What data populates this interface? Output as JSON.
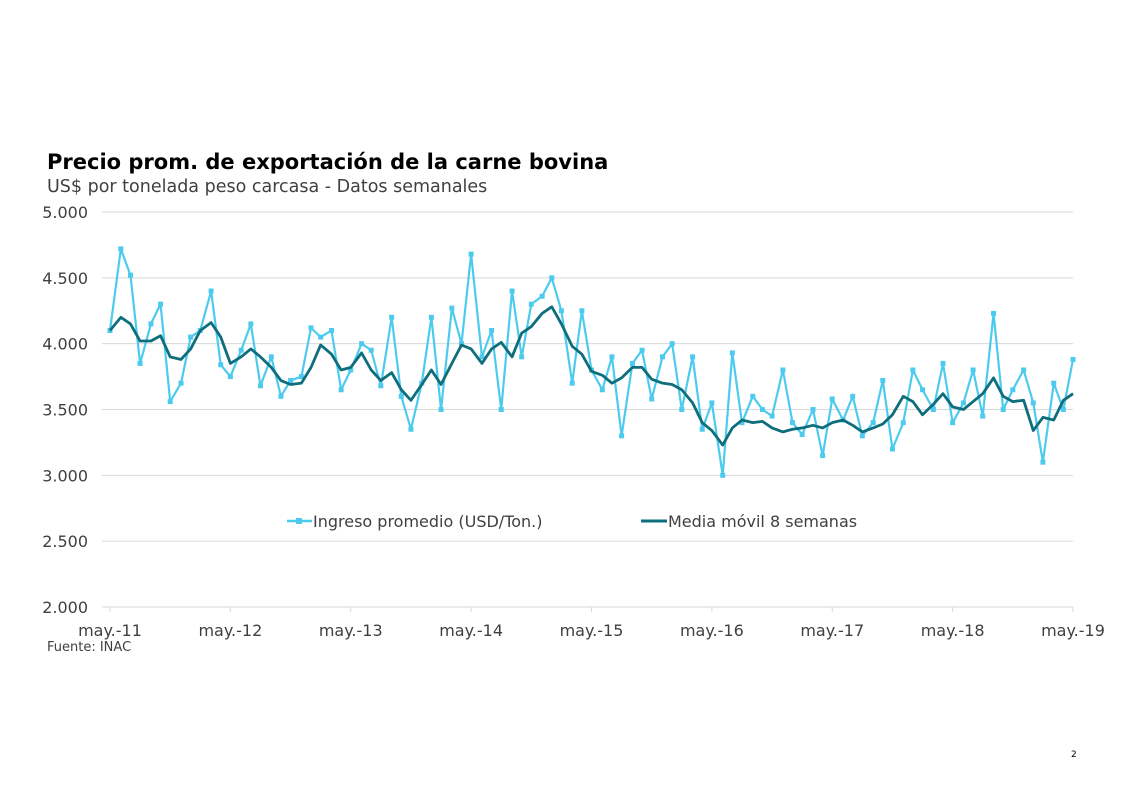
{
  "title": "Precio prom. de exportación de la carne bovina",
  "subtitle": "US$ por tonelada peso carcasa - Datos semanales",
  "source": "Fuente: INAC",
  "page_number": "2",
  "colors": {
    "raw": "#4DCBEF",
    "ma": "#0E6E7C",
    "grid": "#D9D9D9",
    "text": "#404040"
  },
  "chart_data": {
    "type": "line",
    "title": "Precio prom. de exportación de la carne bovina",
    "subtitle": "US$ por tonelada peso carcasa - Datos semanales",
    "xlabel": "",
    "ylabel": "",
    "ylim": [
      2000,
      5000
    ],
    "yticks": [
      2000,
      2500,
      3000,
      3500,
      4000,
      4500,
      5000
    ],
    "ytick_labels": [
      "2.000",
      "2.500",
      "3.000",
      "3.500",
      "4.000",
      "4.500",
      "5.000"
    ],
    "xlim": [
      2011.33,
      2019.33
    ],
    "xticks": [
      2011.33,
      2012.33,
      2013.33,
      2014.33,
      2015.33,
      2016.33,
      2017.33,
      2018.33,
      2019.33
    ],
    "xtick_labels": [
      "may.-11",
      "may.-12",
      "may.-13",
      "may.-14",
      "may.-15",
      "may.-16",
      "may.-17",
      "may.-18",
      "may.-19"
    ],
    "grid": true,
    "legend_position": "inside-lower-center",
    "series": [
      {
        "name": "Ingreso promedio (USD/Ton.)",
        "marker": "square",
        "x": [
          2011.33,
          2011.42,
          2011.5,
          2011.58,
          2011.67,
          2011.75,
          2011.83,
          2011.92,
          2012.0,
          2012.08,
          2012.17,
          2012.25,
          2012.33,
          2012.42,
          2012.5,
          2012.58,
          2012.67,
          2012.75,
          2012.83,
          2012.92,
          2013.0,
          2013.08,
          2013.17,
          2013.25,
          2013.33,
          2013.42,
          2013.5,
          2013.58,
          2013.67,
          2013.75,
          2013.83,
          2013.92,
          2014.0,
          2014.08,
          2014.17,
          2014.25,
          2014.33,
          2014.42,
          2014.5,
          2014.58,
          2014.67,
          2014.75,
          2014.83,
          2014.92,
          2015.0,
          2015.08,
          2015.17,
          2015.25,
          2015.33,
          2015.42,
          2015.5,
          2015.58,
          2015.67,
          2015.75,
          2015.83,
          2015.92,
          2016.0,
          2016.08,
          2016.17,
          2016.25,
          2016.33,
          2016.42,
          2016.5,
          2016.58,
          2016.67,
          2016.75,
          2016.83,
          2016.92,
          2017.0,
          2017.08,
          2017.17,
          2017.25,
          2017.33,
          2017.42,
          2017.5,
          2017.58,
          2017.67,
          2017.75,
          2017.83,
          2017.92,
          2018.0,
          2018.08,
          2018.17,
          2018.25,
          2018.33,
          2018.42,
          2018.5,
          2018.58,
          2018.67,
          2018.75,
          2018.83,
          2018.92,
          2019.0,
          2019.08,
          2019.17,
          2019.25,
          2019.33
        ],
        "values": [
          4100,
          4720,
          4520,
          3850,
          4150,
          4300,
          3560,
          3700,
          4050,
          4100,
          4400,
          3840,
          3750,
          3950,
          4150,
          3680,
          3900,
          3600,
          3720,
          3750,
          4120,
          4050,
          4100,
          3650,
          3800,
          4000,
          3950,
          3680,
          4200,
          3600,
          3350,
          3700,
          4200,
          3500,
          4270,
          4000,
          4680,
          3900,
          4100,
          3500,
          4400,
          3900,
          4300,
          4360,
          4500,
          4250,
          3700,
          4250,
          3800,
          3650,
          3900,
          3300,
          3850,
          3950,
          3580,
          3900,
          4000,
          3500,
          3900,
          3350,
          3550,
          3000,
          3930,
          3400,
          3600,
          3500,
          3450,
          3800,
          3400,
          3310,
          3500,
          3150,
          3580,
          3420,
          3600,
          3300,
          3400,
          3720,
          3200,
          3400,
          3800,
          3650,
          3500,
          3850,
          3400,
          3550,
          3800,
          3450,
          4230,
          3500,
          3650,
          3800,
          3550,
          3100,
          3700,
          3500,
          3880
        ]
      },
      {
        "name": "Media móvil 8 semanas",
        "marker": "none",
        "x": [
          2011.33,
          2011.42,
          2011.5,
          2011.58,
          2011.67,
          2011.75,
          2011.83,
          2011.92,
          2012.0,
          2012.08,
          2012.17,
          2012.25,
          2012.33,
          2012.42,
          2012.5,
          2012.58,
          2012.67,
          2012.75,
          2012.83,
          2012.92,
          2013.0,
          2013.08,
          2013.17,
          2013.25,
          2013.33,
          2013.42,
          2013.5,
          2013.58,
          2013.67,
          2013.75,
          2013.83,
          2013.92,
          2014.0,
          2014.08,
          2014.17,
          2014.25,
          2014.33,
          2014.42,
          2014.5,
          2014.58,
          2014.67,
          2014.75,
          2014.83,
          2014.92,
          2015.0,
          2015.08,
          2015.17,
          2015.25,
          2015.33,
          2015.42,
          2015.5,
          2015.58,
          2015.67,
          2015.75,
          2015.83,
          2015.92,
          2016.0,
          2016.08,
          2016.17,
          2016.25,
          2016.33,
          2016.42,
          2016.5,
          2016.58,
          2016.67,
          2016.75,
          2016.83,
          2016.92,
          2017.0,
          2017.08,
          2017.17,
          2017.25,
          2017.33,
          2017.42,
          2017.5,
          2017.58,
          2017.67,
          2017.75,
          2017.83,
          2017.92,
          2018.0,
          2018.08,
          2018.17,
          2018.25,
          2018.33,
          2018.42,
          2018.5,
          2018.58,
          2018.67,
          2018.75,
          2018.83,
          2018.92,
          2019.0,
          2019.08,
          2019.17,
          2019.25,
          2019.33
        ],
        "values": [
          4100,
          4200,
          4150,
          4020,
          4020,
          4060,
          3900,
          3880,
          3960,
          4100,
          4160,
          4050,
          3850,
          3900,
          3960,
          3900,
          3820,
          3720,
          3690,
          3700,
          3820,
          3990,
          3920,
          3800,
          3820,
          3930,
          3800,
          3720,
          3780,
          3650,
          3570,
          3690,
          3800,
          3690,
          3850,
          3990,
          3960,
          3850,
          3960,
          4010,
          3900,
          4080,
          4130,
          4230,
          4280,
          4150,
          3980,
          3920,
          3790,
          3760,
          3700,
          3740,
          3820,
          3820,
          3730,
          3700,
          3690,
          3650,
          3550,
          3400,
          3340,
          3230,
          3360,
          3420,
          3400,
          3410,
          3360,
          3330,
          3350,
          3360,
          3380,
          3360,
          3400,
          3420,
          3380,
          3330,
          3360,
          3390,
          3460,
          3600,
          3560,
          3460,
          3540,
          3620,
          3520,
          3500,
          3560,
          3620,
          3740,
          3600,
          3560,
          3570,
          3340,
          3440,
          3420,
          3570,
          3620
        ]
      }
    ]
  }
}
